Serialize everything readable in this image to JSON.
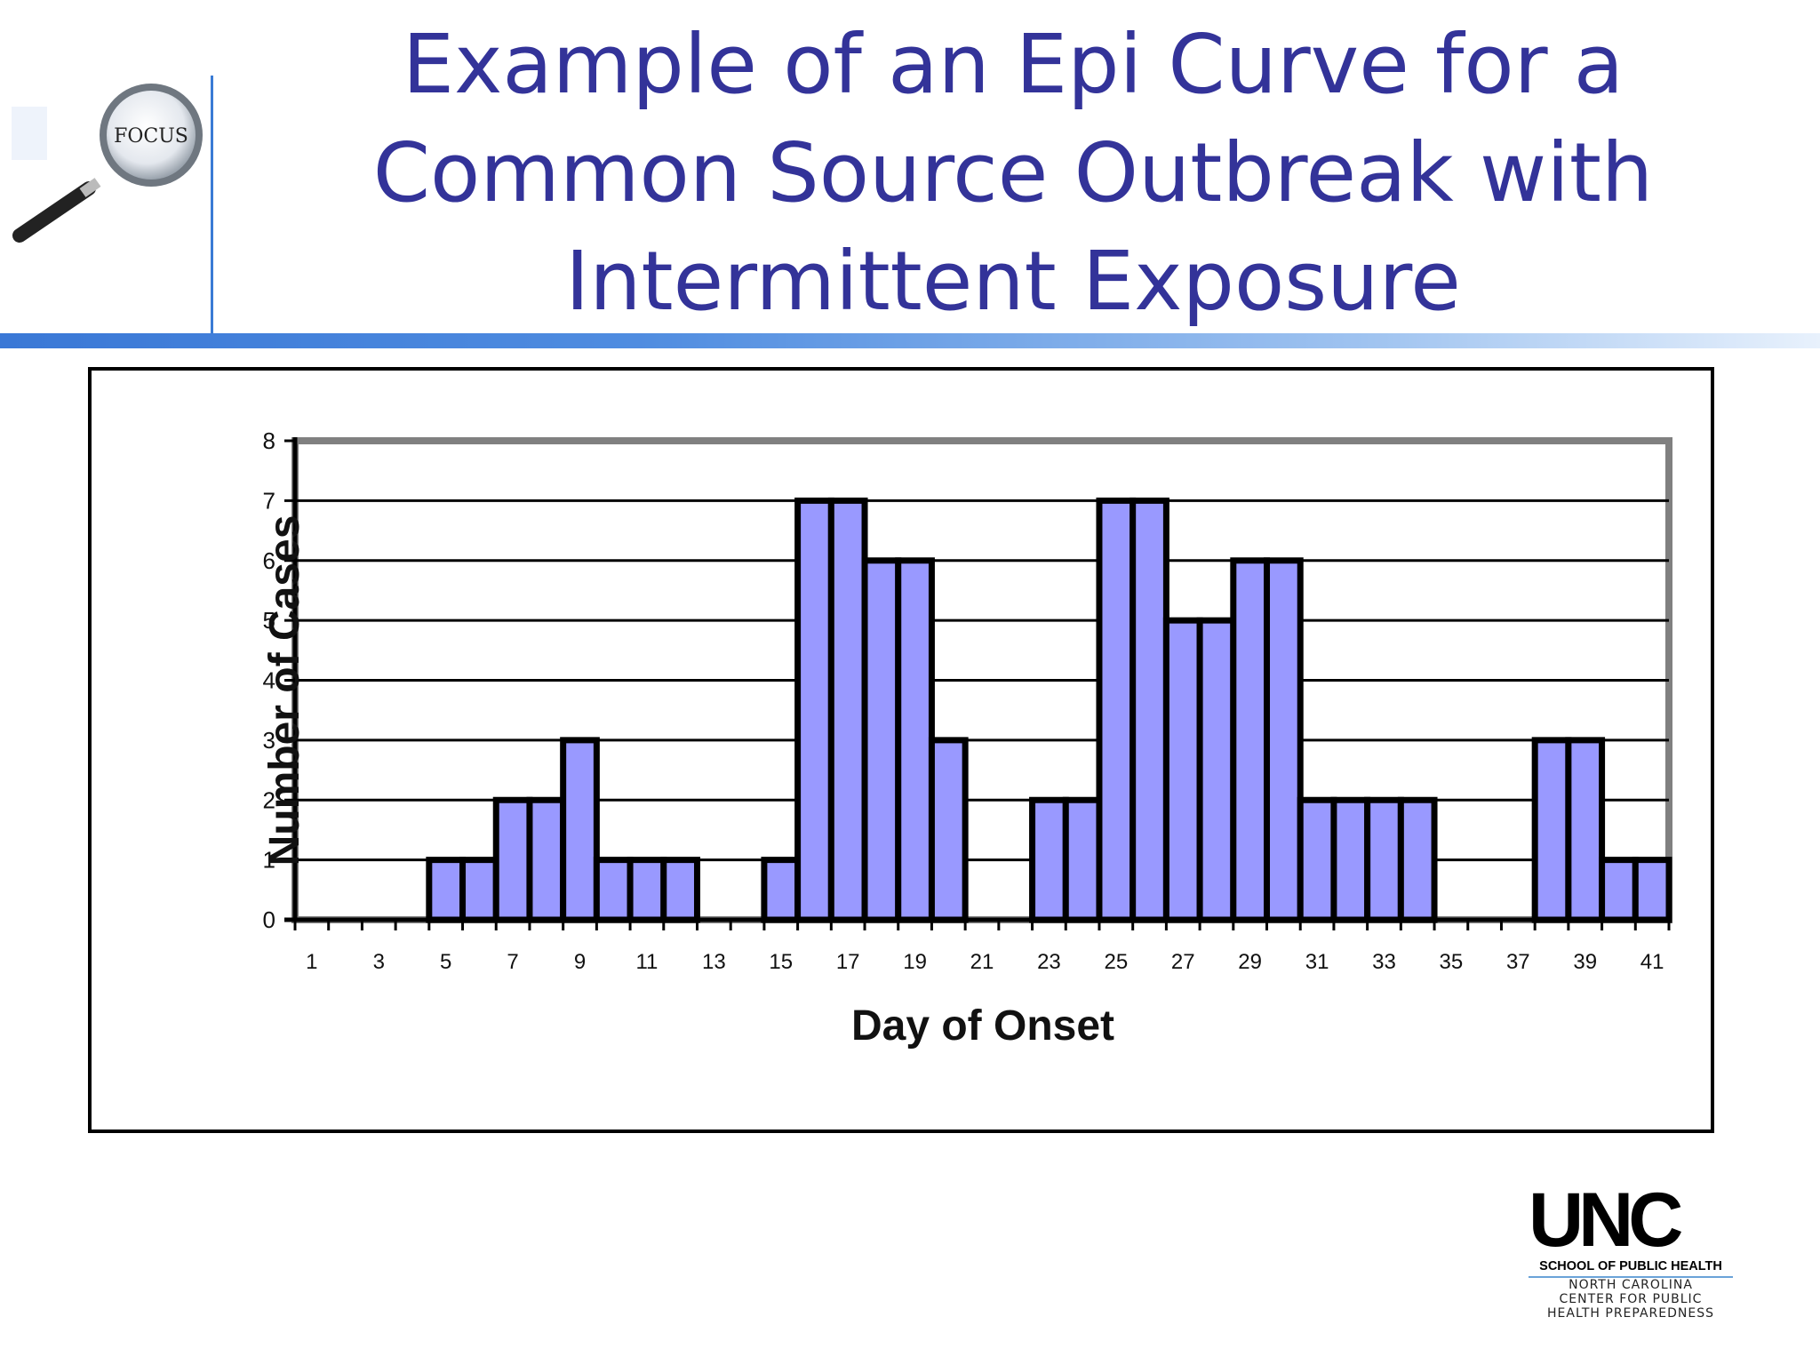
{
  "slide": {
    "title_lines": [
      "Example of an Epi Curve for a",
      "Common Source Outbreak with",
      "Intermittent Exposure"
    ]
  },
  "focus_logo": {
    "label": "FOCUS"
  },
  "unc_logo": {
    "wordmark": "UNC",
    "school": "SCHOOL OF PUBLIC HEALTH",
    "lines": [
      "NORTH CAROLINA",
      "CENTER FOR PUBLIC",
      "HEALTH PREPAREDNESS"
    ]
  },
  "colors": {
    "title": "#333399",
    "bar_fill": "#9999ff",
    "bar_stroke": "#000000",
    "header_bar": "#3a78d6",
    "plot_border": "#808080"
  },
  "chart_data": {
    "type": "bar",
    "title": "",
    "xlabel": "Day of Onset",
    "ylabel": "Number of Cases",
    "categories": [
      1,
      2,
      3,
      4,
      5,
      6,
      7,
      8,
      9,
      10,
      11,
      12,
      13,
      14,
      15,
      16,
      17,
      18,
      19,
      20,
      21,
      22,
      23,
      24,
      25,
      26,
      27,
      28,
      29,
      30,
      31,
      32,
      33,
      34,
      35,
      36,
      37,
      38,
      39,
      40,
      41
    ],
    "x_tick_labels": [
      "1",
      "3",
      "5",
      "7",
      "9",
      "11",
      "13",
      "15",
      "17",
      "19",
      "21",
      "23",
      "25",
      "27",
      "29",
      "31",
      "33",
      "35",
      "37",
      "39",
      "41"
    ],
    "values": [
      0,
      0,
      0,
      0,
      1,
      1,
      2,
      2,
      3,
      1,
      1,
      1,
      0,
      0,
      1,
      7,
      7,
      6,
      6,
      3,
      0,
      0,
      2,
      2,
      7,
      7,
      5,
      5,
      6,
      6,
      2,
      2,
      2,
      2,
      0,
      0,
      0,
      3,
      3,
      1,
      1
    ],
    "ylim": [
      0,
      8
    ],
    "y_ticks": [
      0,
      1,
      2,
      3,
      4,
      5,
      6,
      7,
      8
    ],
    "grid": true,
    "legend": "none"
  }
}
